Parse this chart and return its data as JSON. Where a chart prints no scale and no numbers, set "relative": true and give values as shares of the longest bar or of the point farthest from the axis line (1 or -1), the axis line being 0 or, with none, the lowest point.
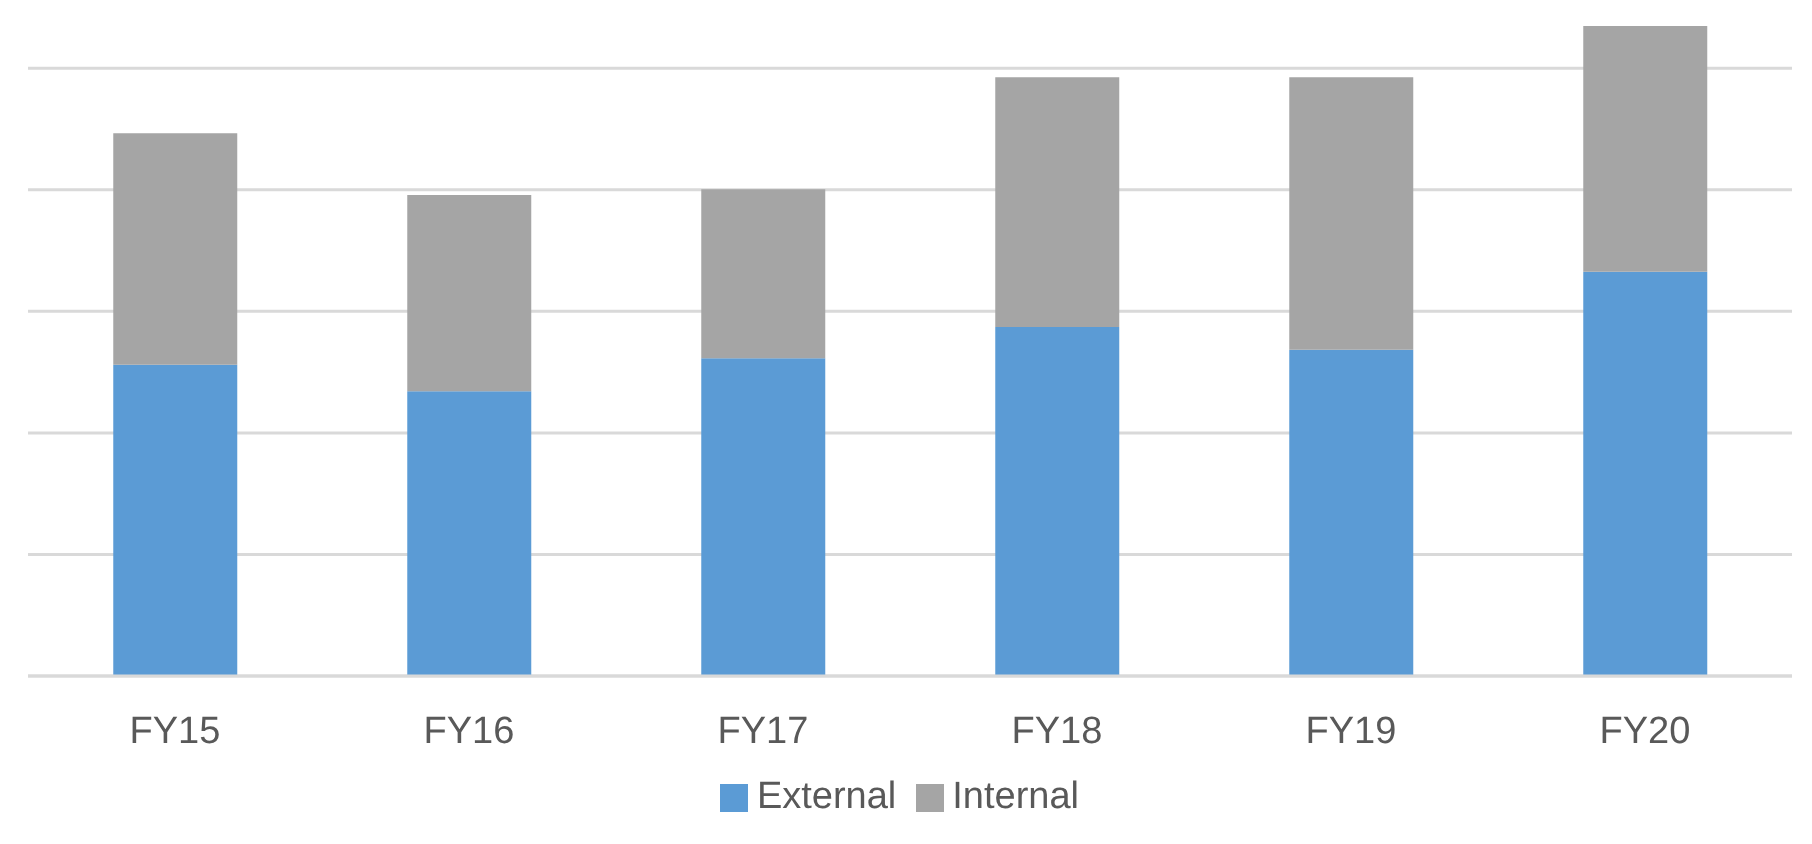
{
  "chart_data": {
    "type": "bar",
    "stacked": true,
    "relative": true,
    "grid": "y",
    "legend": "bottom",
    "categories": [
      "FY15",
      "FY16",
      "FY17",
      "FY18",
      "FY19",
      "FY20"
    ],
    "series": [
      {
        "name": "External",
        "color": "#5b9bd5",
        "values": [
          0.479,
          0.438,
          0.489,
          0.537,
          0.502,
          0.622
        ]
      },
      {
        "name": "Internal",
        "color": "#a5a5a5",
        "values": [
          0.356,
          0.302,
          0.26,
          0.384,
          0.419,
          0.378
        ]
      }
    ]
  }
}
